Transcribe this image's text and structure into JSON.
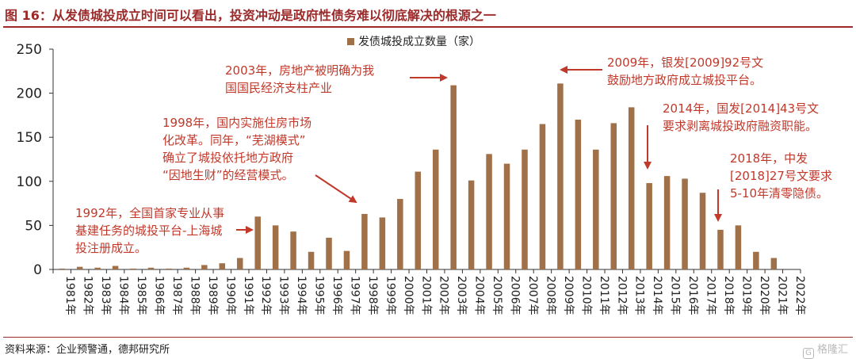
{
  "header": {
    "title": "图 16：从发债城投成立时间可以看出，投资冲动是政府性债务难以彻底解决的根源之一"
  },
  "footer": {
    "source": "资料来源：企业预警通，德邦研究所",
    "watermark": "格隆汇",
    "watermark_logo": "G"
  },
  "chart_data": {
    "type": "bar",
    "legend": "发债城投成立数量（家）",
    "legend_position": "top-center",
    "categories": [
      "1981年",
      "1982年",
      "1983年",
      "1984年",
      "1985年",
      "1986年",
      "1987年",
      "1988年",
      "1989年",
      "1990年",
      "1991年",
      "1992年",
      "1993年",
      "1994年",
      "1995年",
      "1996年",
      "1997年",
      "1998年",
      "1999年",
      "2000年",
      "2001年",
      "2002年",
      "2003年",
      "2004年",
      "2005年",
      "2006年",
      "2007年",
      "2008年",
      "2009年",
      "2010年",
      "2011年",
      "2012年",
      "2013年",
      "2014年",
      "2015年",
      "2016年",
      "2017年",
      "2018年",
      "2019年",
      "2020年",
      "2021年",
      "2022年"
    ],
    "values": [
      1,
      3,
      2,
      4,
      1,
      2,
      1,
      2,
      5,
      7,
      13,
      60,
      50,
      43,
      20,
      36,
      21,
      63,
      59,
      80,
      111,
      136,
      209,
      101,
      131,
      120,
      136,
      165,
      211,
      170,
      136,
      166,
      184,
      98,
      106,
      103,
      87,
      45,
      50,
      20,
      13,
      0
    ],
    "ylim": [
      0,
      250
    ],
    "yticks": [
      0,
      50,
      100,
      150,
      200,
      250
    ],
    "grid": false,
    "bar_color": "#a07048",
    "annotation_color": "#c0392b",
    "annotations": [
      {
        "lines": [
          "1992年，全国首家专业从事",
          "基建任务的城投平台-上海城",
          "投注册成立。"
        ]
      },
      {
        "lines": [
          "1998年，国内实施住房市场",
          "化改革。同年，“芜湖模式”",
          "确立了城投依托地方政府",
          "“因地生财”的经营模式。"
        ]
      },
      {
        "lines": [
          "2003年，房地产被明确为我",
          "国国民经济支柱产业"
        ]
      },
      {
        "lines": [
          "2009年，银发[2009]92号文",
          "鼓励地方政府成立城投平台。"
        ]
      },
      {
        "lines": [
          "2014年，国发[2014]43号文",
          "要求剥离城投政府融资职能。"
        ]
      },
      {
        "lines": [
          "2018年，中发",
          "[2018]27号文要求",
          "5-10年清零隐债。"
        ]
      }
    ]
  }
}
